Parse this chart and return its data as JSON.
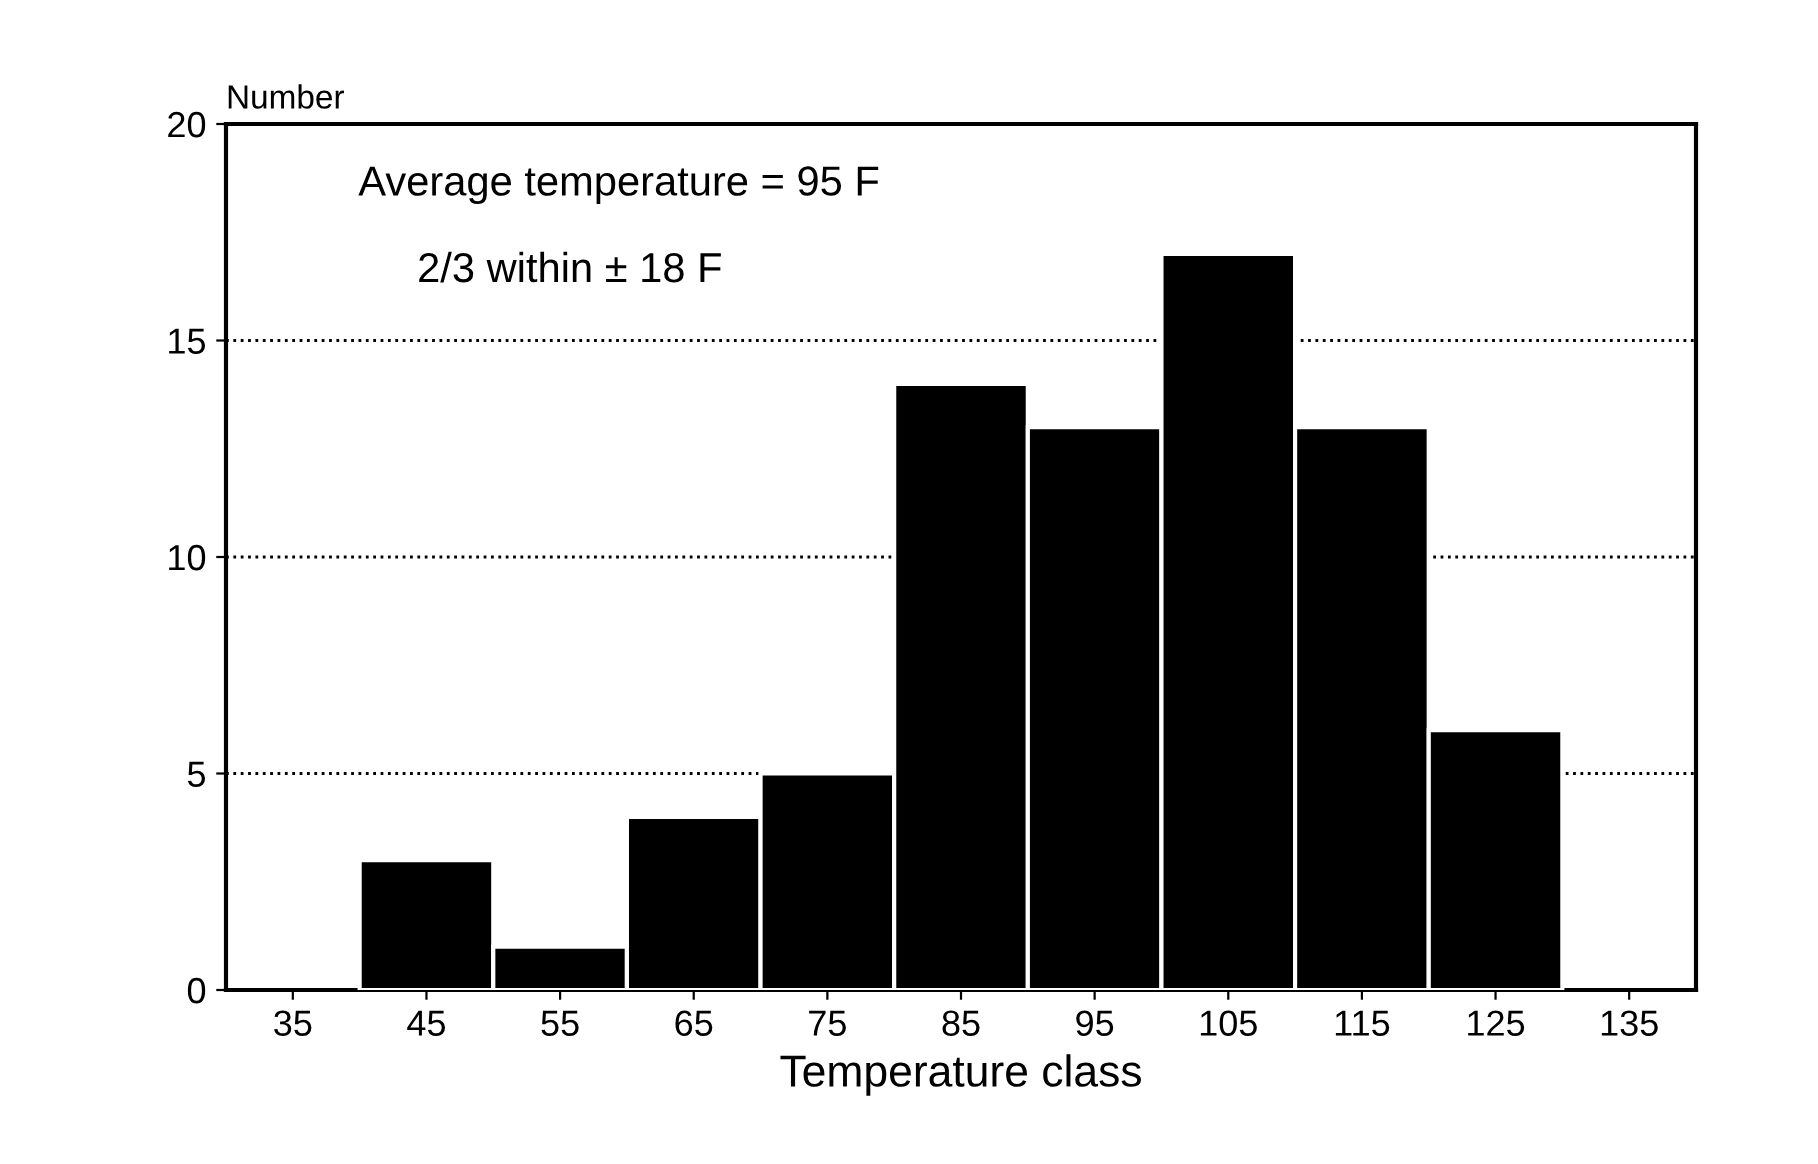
{
  "chart_data": {
    "type": "histogram",
    "xlabel": "Temperature class",
    "ylabel": "Number",
    "bins": [
      40,
      50,
      60,
      70,
      80,
      90,
      100,
      110,
      120,
      130
    ],
    "values": [
      3,
      1,
      4,
      5,
      14,
      13,
      17,
      13,
      6
    ],
    "color": "#000000",
    "xlim": [
      30,
      140
    ],
    "xticks": [
      35,
      45,
      55,
      65,
      75,
      85,
      95,
      105,
      115,
      125,
      135
    ],
    "ylim": [
      0,
      20
    ],
    "yticks": [
      0,
      5,
      10,
      15,
      20
    ],
    "grid": "y",
    "line_style": "dotted",
    "annotations": [
      "Average temperature = 95 F",
      "2/3 within ± 18 F"
    ]
  }
}
